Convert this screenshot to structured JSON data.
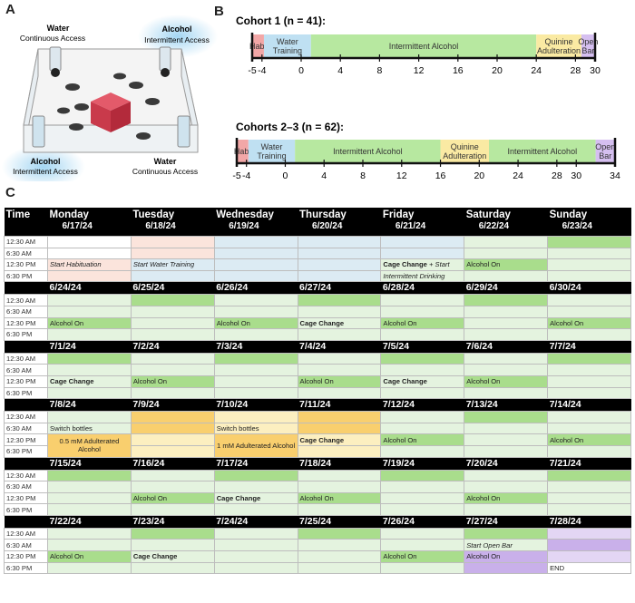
{
  "panels": {
    "a": "A",
    "b": "B",
    "c": "C"
  },
  "panel_a": {
    "top_left": {
      "title": "Water",
      "sub": "Continuous Access"
    },
    "top_right": {
      "title": "Alcohol",
      "sub": "Intermittent Access"
    },
    "bottom_left": {
      "title": "Alcohol",
      "sub": "Intermittent Access"
    },
    "bottom_right": {
      "title": "Water",
      "sub": "Continuous Access"
    }
  },
  "cohort1": {
    "title": "Cohort 1 (n = 41):",
    "phases": [
      {
        "label": "Hab.",
        "start": -5,
        "end": -3.8,
        "color": "#f2a7a7"
      },
      {
        "label": "Water Training",
        "start": -3.8,
        "end": 1,
        "color": "#bfe0f2"
      },
      {
        "label": "Intermittent Alcohol",
        "start": 1,
        "end": 24,
        "color": "#b7e8a0"
      },
      {
        "label": "Quinine Adulteration",
        "start": 24,
        "end": 28.6,
        "color": "#faeaa3"
      },
      {
        "label": "Open Bar",
        "start": 28.6,
        "end": 30,
        "color": "#d5bff0"
      }
    ],
    "ticks": [
      "-5",
      "-4",
      "0",
      "4",
      "8",
      "12",
      "16",
      "20",
      "24",
      "28",
      "30"
    ],
    "range": [
      -5,
      30
    ]
  },
  "cohort23": {
    "title": "Cohorts 2–3 (n = 62):",
    "phases": [
      {
        "label": "Hab.",
        "start": -5,
        "end": -3.8,
        "color": "#f2a7a7"
      },
      {
        "label": "Water Training",
        "start": -3.8,
        "end": 1,
        "color": "#bfe0f2"
      },
      {
        "label": "Intermittent Alcohol",
        "start": 1,
        "end": 16,
        "color": "#b7e8a0"
      },
      {
        "label": "Quinine Adulteration",
        "start": 16,
        "end": 21,
        "color": "#faeaa3"
      },
      {
        "label": "Intermittent Alcohol",
        "start": 21,
        "end": 32,
        "color": "#b7e8a0"
      },
      {
        "label": "Open Bar",
        "start": 32,
        "end": 34,
        "color": "#d5bff0"
      }
    ],
    "ticks": [
      "-5",
      "-4",
      "0",
      "4",
      "8",
      "12",
      "16",
      "20",
      "24",
      "28",
      "30",
      "34"
    ],
    "range": [
      -5,
      34
    ]
  },
  "calendar": {
    "time_header": "Time",
    "days": [
      "Monday",
      "Tuesday",
      "Wednesday",
      "Thursday",
      "Friday",
      "Saturday",
      "Sunday"
    ],
    "times": [
      "12:30 AM",
      "6:30 AM",
      "12:30 PM",
      "6:30 PM"
    ],
    "weeks": [
      {
        "dates": [
          "6/17/24",
          "6/18/24",
          "6/19/24",
          "6/20/24",
          "6/21/24",
          "6/22/24",
          "6/23/24"
        ]
      },
      {
        "dates": [
          "6/24/24",
          "6/25/24",
          "6/26/24",
          "6/27/24",
          "6/28/24",
          "6/29/24",
          "6/30/24"
        ]
      },
      {
        "dates": [
          "7/1/24",
          "7/2/24",
          "7/3/24",
          "7/4/24",
          "7/5/24",
          "7/6/24",
          "7/7/24"
        ]
      },
      {
        "dates": [
          "7/8/24",
          "7/9/24",
          "7/10/24",
          "7/11/24",
          "7/12/24",
          "7/13/24",
          "7/14/24"
        ]
      },
      {
        "dates": [
          "7/15/24",
          "7/16/24",
          "7/17/24",
          "7/18/24",
          "7/19/24",
          "7/20/24",
          "7/21/24"
        ]
      },
      {
        "dates": [
          "7/22/24",
          "7/23/24",
          "7/24/24",
          "7/25/24",
          "7/26/24",
          "7/27/24",
          "7/28/24"
        ]
      }
    ],
    "events": {
      "start_habituation": "Start Habituation",
      "start_water_training": "Start Water Training",
      "cage_change": "Cage Change",
      "plus_start": " + Start",
      "intermittent_drinking": "Intermittent Drinking",
      "alcohol_on": "Alcohol On",
      "switch_bottles": "Switch bottles",
      "adulterated_05": "0.5 mM Adulterated Alcohol",
      "adulterated_1": "1 mM Adulterated Alcohol",
      "start_open_bar": "Start Open Bar",
      "end": "END"
    }
  }
}
